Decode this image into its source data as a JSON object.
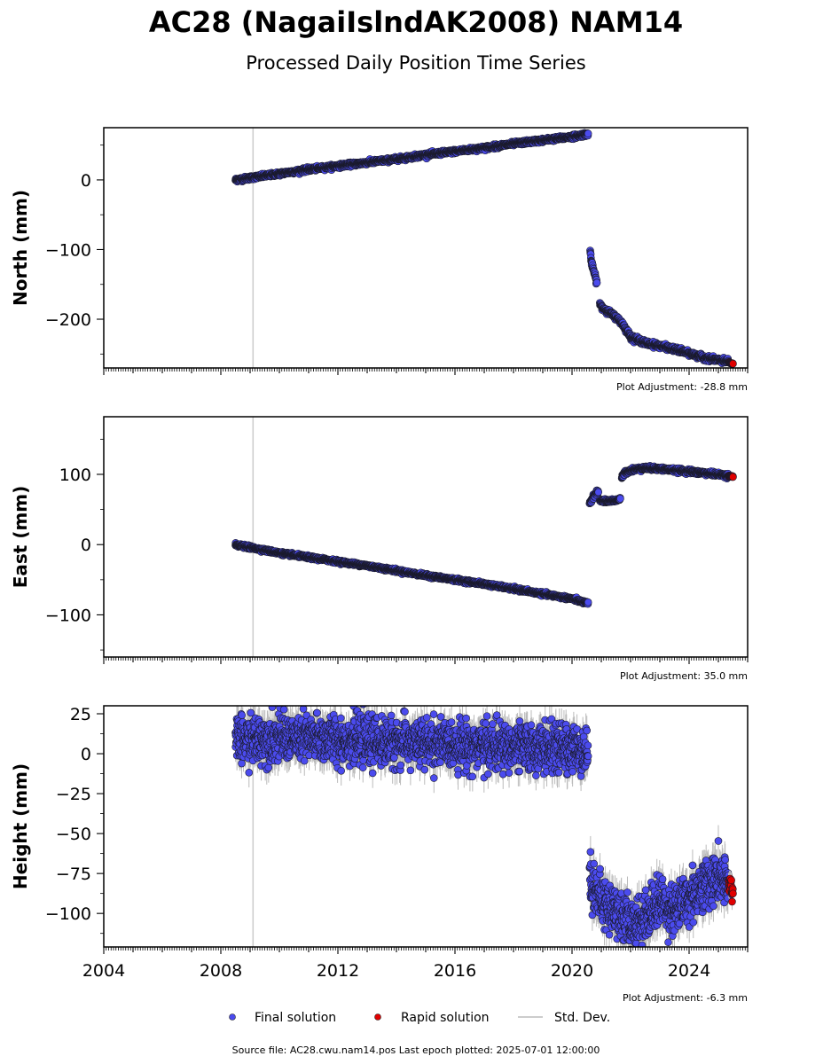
{
  "title": "AC28 (NagaiIslndAK2008) NAM14",
  "subtitle": "Processed Daily Position Time Series",
  "footer": "Source file: AC28.cwu.nam14.pos  Last epoch plotted: 2025-07-01 12:00:00",
  "colors": {
    "final": "#4b4bee",
    "rapid": "#e00000",
    "stddev": "#bbbbbb",
    "vline": "#cccccc"
  },
  "legend": {
    "final": "Final solution",
    "rapid": "Rapid solution",
    "stddev": "Std. Dev."
  },
  "chart_data": [
    {
      "type": "scatter",
      "ylabel": "North (mm)",
      "adjustment": "Plot Adjustment: -28.8 mm",
      "xlim": [
        2004.0,
        2026.0
      ],
      "ylim": [
        -270,
        75
      ],
      "yticks": [
        0,
        -100,
        -200
      ],
      "ytick_labels": [
        "0",
        "−100",
        "−200"
      ],
      "xticks": [],
      "vline_x": 2009.1,
      "series": [
        {
          "name": "Final solution",
          "style": "final",
          "segments": [
            {
              "x": [
                2008.5,
                2009.0,
                2010.0,
                2011.0,
                2012.0,
                2013.0,
                2014.0,
                2015.0,
                2016.0,
                2017.0,
                2018.0,
                2019.0,
                2020.0,
                2020.55
              ],
              "y": [
                0,
                3,
                9,
                15,
                20,
                25,
                30,
                36,
                41,
                46,
                52,
                57,
                62,
                66
              ],
              "noise": 2.5
            },
            {
              "x": [
                2020.62,
                2020.65,
                2020.7,
                2020.75,
                2020.8,
                2020.85
              ],
              "y": [
                -100,
                -115,
                -125,
                -132,
                -140,
                -148
              ],
              "noise": 3
            },
            {
              "x": [
                2020.95,
                2021.0,
                2021.2,
                2021.5,
                2021.7,
                2022.0,
                2022.5,
                2023.0,
                2023.5,
                2024.0,
                2024.5,
                2025.0,
                2025.35
              ],
              "y": [
                -177,
                -182,
                -188,
                -197,
                -205,
                -225,
                -234,
                -238,
                -243,
                -249,
                -255,
                -259,
                -261
              ],
              "noise": 3
            }
          ]
        },
        {
          "name": "Rapid solution",
          "style": "rapid",
          "segments": [
            {
              "x": [
                2025.35,
                2025.5
              ],
              "y": [
                -262,
                -264
              ],
              "noise": 1
            }
          ]
        }
      ]
    },
    {
      "type": "scatter",
      "ylabel": "East (mm)",
      "adjustment": "Plot Adjustment: 35.0 mm",
      "xlim": [
        2004.0,
        2026.0
      ],
      "ylim": [
        -160,
        182
      ],
      "yticks": [
        100,
        0,
        -100
      ],
      "ytick_labels": [
        "100",
        "0",
        "−100"
      ],
      "xticks": [],
      "vline_x": 2009.1,
      "series": [
        {
          "name": "Final solution",
          "style": "final",
          "segments": [
            {
              "x": [
                2008.5,
                2009.0,
                2010.0,
                2011.0,
                2012.0,
                2013.0,
                2014.0,
                2015.0,
                2016.0,
                2017.0,
                2018.0,
                2019.0,
                2020.0,
                2020.55
              ],
              "y": [
                0,
                -4,
                -12,
                -18,
                -24,
                -30,
                -37,
                -44,
                -50,
                -56,
                -63,
                -70,
                -77,
                -84
              ],
              "noise": 2
            },
            {
              "x": [
                2020.6,
                2020.7,
                2020.8,
                2020.9
              ],
              "y": [
                58,
                66,
                72,
                75
              ],
              "noise": 3
            },
            {
              "x": [
                2020.95,
                2021.2,
                2021.5,
                2021.65
              ],
              "y": [
                63,
                62,
                63,
                65
              ],
              "noise": 2
            },
            {
              "x": [
                2021.7,
                2021.8,
                2022.0,
                2022.3,
                2022.5,
                2023.0,
                2023.5,
                2024.0,
                2024.5,
                2025.0,
                2025.35
              ],
              "y": [
                95,
                102,
                106,
                108,
                109,
                108,
                106,
                104,
                102,
                100,
                98
              ],
              "noise": 2.5
            }
          ]
        },
        {
          "name": "Rapid solution",
          "style": "rapid",
          "segments": [
            {
              "x": [
                2025.35,
                2025.5
              ],
              "y": [
                98,
                97
              ],
              "noise": 1
            }
          ]
        }
      ]
    },
    {
      "type": "scatter",
      "ylabel": "Height (mm)",
      "adjustment": "Plot Adjustment: -6.3 mm",
      "xlim": [
        2004.0,
        2026.0
      ],
      "ylim": [
        -121,
        30
      ],
      "yticks": [
        25,
        0,
        -25,
        -50,
        -75,
        -100
      ],
      "ytick_labels": [
        "25",
        "0",
        "−25",
        "−50",
        "−75",
        "−100"
      ],
      "xticks": [
        2004,
        2008,
        2012,
        2016,
        2020,
        2024
      ],
      "xtick_labels": [
        "2004",
        "2008",
        "2012",
        "2016",
        "2020",
        "2024"
      ],
      "vline_x": 2009.1,
      "series": [
        {
          "name": "Final solution",
          "style": "final",
          "segments": [
            {
              "x": [
                2008.5,
                2010.0,
                2012.0,
                2014.0,
                2016.0,
                2018.0,
                2020.0,
                2020.55
              ],
              "y": [
                8,
                10,
                9,
                7,
                6,
                4,
                3,
                2
              ],
              "noise": 13
            },
            {
              "x": [
                2020.6,
                2021.0,
                2021.5,
                2022.0,
                2022.5,
                2023.0,
                2023.5,
                2024.0,
                2024.5,
                2025.0,
                2025.35
              ],
              "y": [
                -78,
                -92,
                -98,
                -108,
                -102,
                -92,
                -98,
                -90,
                -82,
                -78,
                -84
              ],
              "noise": 14
            }
          ]
        },
        {
          "name": "Rapid solution",
          "style": "rapid",
          "segments": [
            {
              "x": [
                2025.35,
                2025.5
              ],
              "y": [
                -78,
                -88
              ],
              "noise": 6
            }
          ]
        }
      ]
    }
  ]
}
